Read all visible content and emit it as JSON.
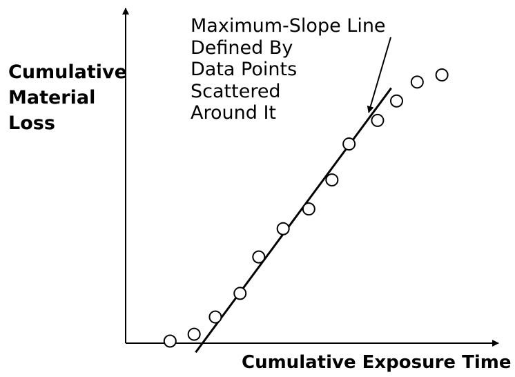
{
  "chart_data": {
    "type": "scatter",
    "title": "",
    "xlabel": "Cumulative Exposure Time",
    "ylabel_lines": [
      "Cumulative",
      "Material",
      "Loss"
    ],
    "xlim": [
      0,
      100
    ],
    "ylim": [
      0,
      100
    ],
    "axis_ticks": false,
    "grid": false,
    "points": [
      {
        "x": 6.6,
        "y": 0.0
      },
      {
        "x": 14.2,
        "y": 2.5
      },
      {
        "x": 20.9,
        "y": 8.8
      },
      {
        "x": 28.7,
        "y": 17.4
      },
      {
        "x": 34.6,
        "y": 30.7
      },
      {
        "x": 42.3,
        "y": 41.0
      },
      {
        "x": 50.4,
        "y": 48.2
      },
      {
        "x": 57.7,
        "y": 58.8
      },
      {
        "x": 63.1,
        "y": 71.9
      },
      {
        "x": 72.1,
        "y": 80.5
      },
      {
        "x": 78.1,
        "y": 87.6
      },
      {
        "x": 84.6,
        "y": 94.5
      },
      {
        "x": 92.4,
        "y": 97.1
      }
    ],
    "fit_line": {
      "x": [
        14.7,
        76.4
      ],
      "y": [
        -4.1,
        92.3
      ]
    },
    "annotation": {
      "lines": [
        "Maximum-Slope Line",
        "Defined By",
        "Data Points",
        "Scattered",
        "Around It"
      ],
      "arrow_to": {
        "x": 69.3,
        "y": 83.4
      }
    },
    "colors": {
      "ink": "#000000",
      "marker_fill": "#ffffff"
    }
  }
}
